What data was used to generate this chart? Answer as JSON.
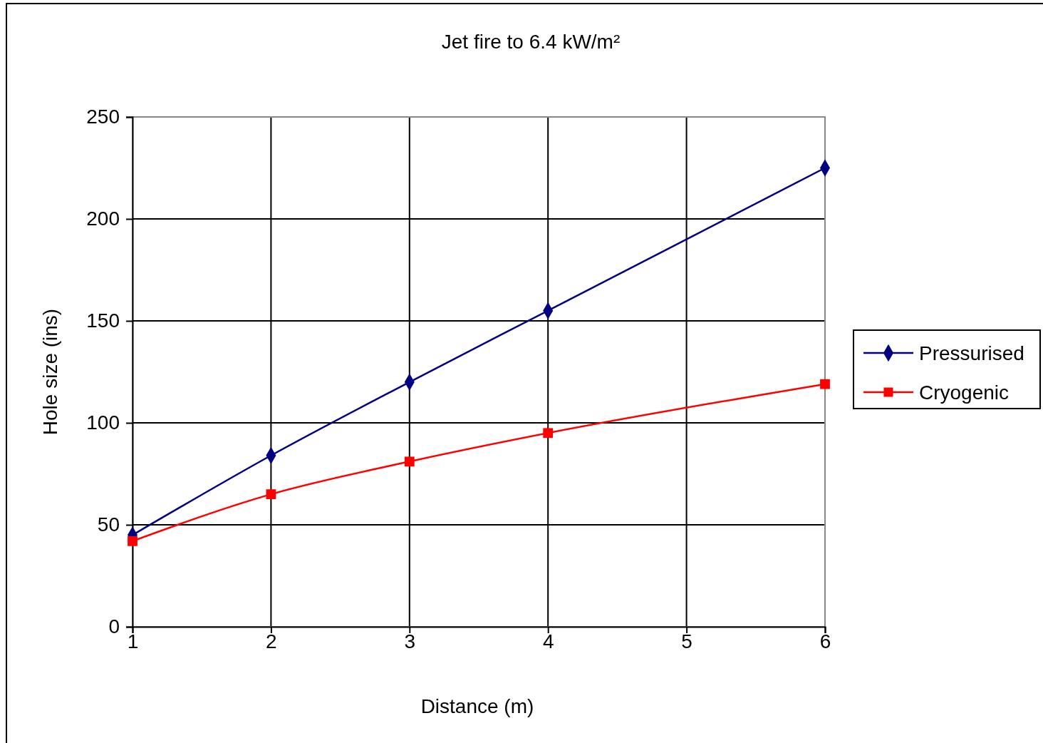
{
  "chart_data": {
    "type": "line",
    "title": "Jet fire to 6.4 kW/m²",
    "xlabel": "Distance (m)",
    "ylabel": "Hole size (ins)",
    "x": [
      1,
      2,
      3,
      4,
      6
    ],
    "series": [
      {
        "name": "Pressurised",
        "color": "#000080",
        "marker": "diamond",
        "values": [
          45,
          84,
          120,
          155,
          225
        ]
      },
      {
        "name": "Cryogenic",
        "color": "#ff0000",
        "marker": "square",
        "values": [
          42,
          65,
          81,
          95,
          119
        ]
      }
    ],
    "xlim": [
      1,
      6
    ],
    "xticks": [
      1,
      2,
      3,
      4,
      5,
      6
    ],
    "ylim": [
      0,
      250
    ],
    "yticks": [
      0,
      50,
      100,
      150,
      200,
      250
    ],
    "grid": true,
    "legend": "right",
    "line_style": "solid"
  }
}
